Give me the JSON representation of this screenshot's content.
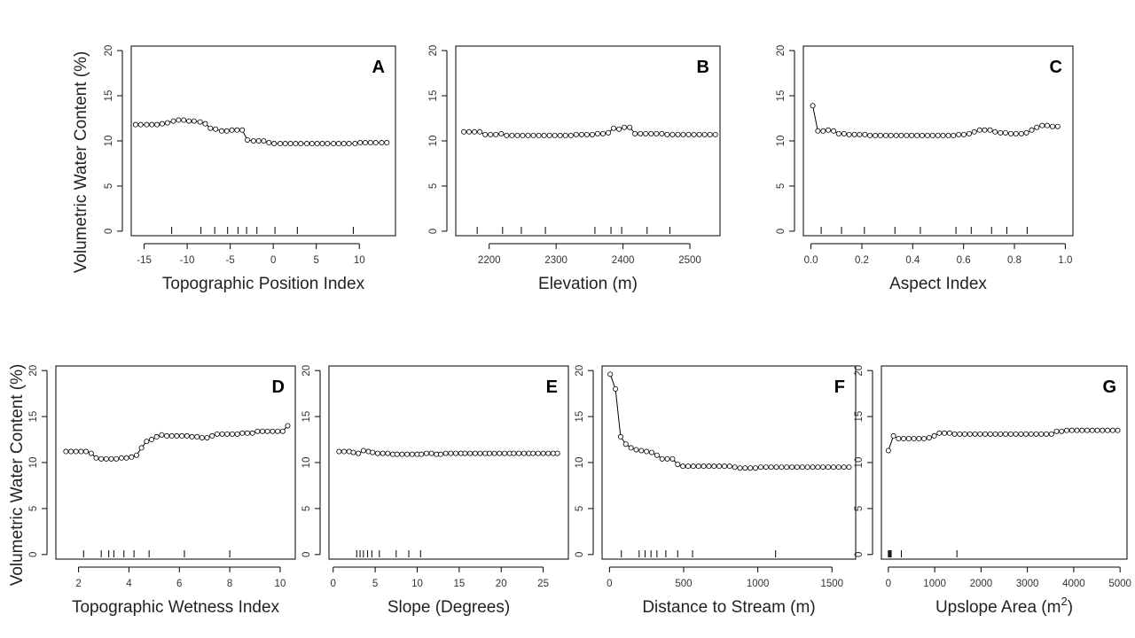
{
  "y_axis_label": "Volumetric Water Content (%)",
  "chart_data": [
    {
      "type": "line",
      "letter": "A",
      "xlabel": "Topographic Position Index",
      "ylabel": "Volumetric Water Content (%)",
      "xlim": [
        -16.5,
        14.2
      ],
      "ylim": [
        -0.5,
        20.5
      ],
      "xticks": [
        -15,
        -10,
        -5,
        0,
        5,
        10
      ],
      "yticks": [
        0,
        5,
        10,
        15,
        20
      ],
      "x": [
        -16,
        -15.4,
        -14.7,
        -14.1,
        -13.5,
        -12.9,
        -12.3,
        -11.6,
        -11,
        -10.4,
        -9.8,
        -9.2,
        -8.5,
        -7.9,
        -7.3,
        -6.7,
        -6,
        -5.4,
        -4.8,
        -4.2,
        -3.6,
        -3,
        -2.3,
        -1.7,
        -1.1,
        -0.5,
        0.1,
        0.8,
        1.4,
        2,
        2.6,
        3.2,
        3.9,
        4.5,
        5.1,
        5.7,
        6.3,
        7,
        7.6,
        8.2,
        8.8,
        9.5,
        10.1,
        10.7,
        11.3,
        11.9,
        12.6,
        13.2
      ],
      "y": [
        11.8,
        11.8,
        11.8,
        11.8,
        11.8,
        11.9,
        12.0,
        12.2,
        12.3,
        12.3,
        12.2,
        12.2,
        12.1,
        11.9,
        11.4,
        11.3,
        11.1,
        11.1,
        11.2,
        11.2,
        11.2,
        10.1,
        10.0,
        10.0,
        10.0,
        9.8,
        9.7,
        9.7,
        9.7,
        9.7,
        9.7,
        9.7,
        9.7,
        9.7,
        9.7,
        9.7,
        9.7,
        9.7,
        9.7,
        9.7,
        9.7,
        9.7,
        9.8,
        9.8,
        9.8,
        9.8,
        9.8,
        9.8
      ],
      "rug": [
        -11.8,
        -8.4,
        -6.8,
        -5.3,
        -4.1,
        -3.1,
        -1.9,
        0.2,
        2.8,
        9.3
      ]
    },
    {
      "type": "line",
      "letter": "B",
      "xlabel": "Elevation (m)",
      "ylabel": "Volumetric Water Content (%)",
      "xlim": [
        2150,
        2545
      ],
      "ylim": [
        -0.5,
        20.5
      ],
      "xticks": [
        2200,
        2300,
        2400,
        2500
      ],
      "yticks": [
        0,
        5,
        10,
        15,
        20
      ],
      "x": [
        2162,
        2170,
        2178,
        2186,
        2194,
        2202,
        2210,
        2218,
        2226,
        2234,
        2242,
        2250,
        2258,
        2266,
        2274,
        2282,
        2290,
        2298,
        2306,
        2314,
        2322,
        2330,
        2338,
        2346,
        2354,
        2362,
        2370,
        2378,
        2386,
        2394,
        2402,
        2410,
        2418,
        2426,
        2434,
        2442,
        2450,
        2458,
        2466,
        2474,
        2482,
        2490,
        2498,
        2506,
        2514,
        2522,
        2530,
        2538
      ],
      "y": [
        11.0,
        11.0,
        11.0,
        11.0,
        10.7,
        10.7,
        10.7,
        10.8,
        10.6,
        10.6,
        10.6,
        10.6,
        10.6,
        10.6,
        10.6,
        10.6,
        10.6,
        10.6,
        10.6,
        10.6,
        10.6,
        10.7,
        10.7,
        10.7,
        10.7,
        10.8,
        10.8,
        10.9,
        11.4,
        11.3,
        11.5,
        11.5,
        10.8,
        10.8,
        10.8,
        10.8,
        10.8,
        10.8,
        10.7,
        10.7,
        10.7,
        10.7,
        10.7,
        10.7,
        10.7,
        10.7,
        10.7,
        10.7
      ],
      "rug": [
        2182,
        2220,
        2248,
        2284,
        2358,
        2382,
        2398,
        2436,
        2470
      ]
    },
    {
      "type": "line",
      "letter": "C",
      "xlabel": "Aspect Index",
      "ylabel": "Volumetric Water Content (%)",
      "xlim": [
        -0.03,
        1.03
      ],
      "ylim": [
        -0.5,
        20.5
      ],
      "xticks": [
        0.0,
        0.2,
        0.4,
        0.6,
        0.8,
        1.0
      ],
      "yticks": [
        0,
        5,
        10,
        15,
        20
      ],
      "x": [
        0.007,
        0.027,
        0.048,
        0.068,
        0.089,
        0.109,
        0.13,
        0.15,
        0.171,
        0.191,
        0.212,
        0.232,
        0.253,
        0.273,
        0.294,
        0.314,
        0.335,
        0.355,
        0.376,
        0.396,
        0.417,
        0.437,
        0.458,
        0.478,
        0.499,
        0.519,
        0.54,
        0.56,
        0.581,
        0.601,
        0.622,
        0.642,
        0.663,
        0.683,
        0.704,
        0.724,
        0.745,
        0.765,
        0.786,
        0.806,
        0.827,
        0.847,
        0.868,
        0.888,
        0.909,
        0.929,
        0.95,
        0.97
      ],
      "y": [
        13.9,
        11.1,
        11.1,
        11.2,
        11.1,
        10.8,
        10.8,
        10.7,
        10.7,
        10.7,
        10.7,
        10.6,
        10.6,
        10.6,
        10.6,
        10.6,
        10.6,
        10.6,
        10.6,
        10.6,
        10.6,
        10.6,
        10.6,
        10.6,
        10.6,
        10.6,
        10.6,
        10.6,
        10.7,
        10.7,
        10.8,
        11.0,
        11.2,
        11.2,
        11.2,
        11.0,
        10.9,
        10.9,
        10.8,
        10.8,
        10.8,
        10.9,
        11.2,
        11.5,
        11.7,
        11.7,
        11.6,
        11.6
      ],
      "rug": [
        0.04,
        0.12,
        0.21,
        0.33,
        0.43,
        0.57,
        0.63,
        0.71,
        0.77,
        0.85
      ]
    },
    {
      "type": "line",
      "letter": "D",
      "xlabel": "Topographic Wetness Index",
      "ylabel": "Volumetric Water Content (%)",
      "xlim": [
        1.1,
        10.6
      ],
      "ylim": [
        -0.5,
        20.5
      ],
      "xticks": [
        2,
        4,
        6,
        8,
        10
      ],
      "yticks": [
        0,
        5,
        10,
        15,
        20
      ],
      "x": [
        1.5,
        1.7,
        1.9,
        2.1,
        2.3,
        2.5,
        2.7,
        2.9,
        3.1,
        3.3,
        3.5,
        3.7,
        3.9,
        4.1,
        4.3,
        4.5,
        4.7,
        4.9,
        5.1,
        5.3,
        5.5,
        5.7,
        5.9,
        6.1,
        6.3,
        6.5,
        6.7,
        6.9,
        7.1,
        7.3,
        7.5,
        7.7,
        7.9,
        8.1,
        8.3,
        8.5,
        8.7,
        8.9,
        9.1,
        9.3,
        9.5,
        9.7,
        9.9,
        10.1,
        10.3
      ],
      "y": [
        11.2,
        11.2,
        11.2,
        11.2,
        11.2,
        11.0,
        10.5,
        10.4,
        10.4,
        10.4,
        10.4,
        10.5,
        10.5,
        10.6,
        10.8,
        11.6,
        12.3,
        12.5,
        12.8,
        13.0,
        12.9,
        12.9,
        12.9,
        12.9,
        12.9,
        12.8,
        12.8,
        12.7,
        12.7,
        12.9,
        13.1,
        13.1,
        13.1,
        13.1,
        13.1,
        13.2,
        13.2,
        13.2,
        13.4,
        13.4,
        13.4,
        13.4,
        13.4,
        13.4,
        14.0
      ],
      "rug": [
        2.2,
        2.9,
        3.2,
        3.4,
        3.8,
        4.2,
        4.8,
        6.2,
        8.0
      ]
    },
    {
      "type": "line",
      "letter": "E",
      "xlabel": "Slope (Degrees)",
      "ylabel": "Volumetric Water Content (%)",
      "xlim": [
        -0.5,
        28
      ],
      "ylim": [
        -0.5,
        20.5
      ],
      "xticks": [
        0,
        5,
        10,
        15,
        20,
        25
      ],
      "yticks": [
        0,
        5,
        10,
        15,
        20
      ],
      "x": [
        0.7,
        1.3,
        1.9,
        2.4,
        3.0,
        3.6,
        4.2,
        4.7,
        5.3,
        5.9,
        6.5,
        7.1,
        7.6,
        8.2,
        8.8,
        9.4,
        10.0,
        10.5,
        11.1,
        11.7,
        12.3,
        12.8,
        13.4,
        14.0,
        14.6,
        15.2,
        15.7,
        16.3,
        16.9,
        17.5,
        18.1,
        18.6,
        19.2,
        19.8,
        20.4,
        21.0,
        21.5,
        22.1,
        22.7,
        23.3,
        23.8,
        24.4,
        25.0,
        25.6,
        26.2,
        26.7
      ],
      "y": [
        11.2,
        11.2,
        11.2,
        11.1,
        11.0,
        11.3,
        11.2,
        11.1,
        11.0,
        11.0,
        11.0,
        10.9,
        10.9,
        10.9,
        10.9,
        10.9,
        10.9,
        10.9,
        11.0,
        11.0,
        10.9,
        10.9,
        11.0,
        11.0,
        11.0,
        11.0,
        11.0,
        11.0,
        11.0,
        11.0,
        11.0,
        11.0,
        11.0,
        11.0,
        11.0,
        11.0,
        11.0,
        11.0,
        11.0,
        11.0,
        11.0,
        11.0,
        11.0,
        11.0,
        11.0,
        11.0
      ],
      "rug": [
        2.8,
        3.2,
        3.6,
        4.1,
        4.6,
        5.5,
        7.5,
        9.0,
        10.4
      ]
    },
    {
      "type": "line",
      "letter": "F",
      "xlabel": "Distance to Stream (m)",
      "ylabel": "Volumetric Water Content (%)",
      "xlim": [
        -50,
        1660
      ],
      "ylim": [
        -0.5,
        20.5
      ],
      "xticks": [
        0,
        500,
        1000,
        1500
      ],
      "yticks": [
        0,
        5,
        10,
        15,
        20
      ],
      "x": [
        5,
        40,
        75,
        110,
        145,
        180,
        215,
        250,
        285,
        320,
        355,
        390,
        425,
        460,
        495,
        530,
        565,
        600,
        635,
        670,
        705,
        740,
        775,
        810,
        845,
        880,
        915,
        950,
        985,
        1020,
        1055,
        1090,
        1125,
        1160,
        1195,
        1230,
        1265,
        1300,
        1335,
        1370,
        1405,
        1440,
        1475,
        1510,
        1545,
        1580,
        1615
      ],
      "y": [
        19.6,
        18.0,
        12.8,
        12.0,
        11.6,
        11.4,
        11.3,
        11.2,
        11.1,
        10.8,
        10.4,
        10.4,
        10.4,
        9.8,
        9.6,
        9.6,
        9.6,
        9.6,
        9.6,
        9.6,
        9.6,
        9.6,
        9.6,
        9.6,
        9.5,
        9.4,
        9.4,
        9.4,
        9.4,
        9.5,
        9.5,
        9.5,
        9.5,
        9.5,
        9.5,
        9.5,
        9.5,
        9.5,
        9.5,
        9.5,
        9.5,
        9.5,
        9.5,
        9.5,
        9.5,
        9.5,
        9.5
      ],
      "rug": [
        80,
        200,
        240,
        280,
        320,
        380,
        460,
        560,
        1120
      ]
    },
    {
      "type": "line",
      "letter": "G",
      "xlabel": "Upslope Area (m²)",
      "ylabel": "Volumetric Water Content (%)",
      "xlim": [
        -150,
        5150
      ],
      "ylim": [
        -0.5,
        20.5
      ],
      "xticks": [
        0,
        1000,
        2000,
        3000,
        4000,
        5000
      ],
      "yticks": [
        0,
        5,
        10,
        15,
        20
      ],
      "x": [
        0,
        110,
        220,
        330,
        440,
        550,
        660,
        770,
        880,
        990,
        1100,
        1210,
        1320,
        1430,
        1540,
        1650,
        1760,
        1870,
        1980,
        2090,
        2200,
        2310,
        2420,
        2530,
        2640,
        2750,
        2860,
        2970,
        3080,
        3190,
        3300,
        3410,
        3520,
        3630,
        3740,
        3850,
        3960,
        4070,
        4180,
        4290,
        4400,
        4510,
        4620,
        4730,
        4840,
        4950
      ],
      "y": [
        11.3,
        12.9,
        12.6,
        12.6,
        12.6,
        12.6,
        12.6,
        12.6,
        12.7,
        12.9,
        13.2,
        13.2,
        13.2,
        13.1,
        13.1,
        13.1,
        13.1,
        13.1,
        13.1,
        13.1,
        13.1,
        13.1,
        13.1,
        13.1,
        13.1,
        13.1,
        13.1,
        13.1,
        13.1,
        13.1,
        13.1,
        13.1,
        13.1,
        13.4,
        13.4,
        13.5,
        13.5,
        13.5,
        13.5,
        13.5,
        13.5,
        13.5,
        13.5,
        13.5,
        13.5,
        13.5
      ],
      "rug": [
        0,
        20,
        40,
        60,
        280,
        1480
      ]
    }
  ]
}
